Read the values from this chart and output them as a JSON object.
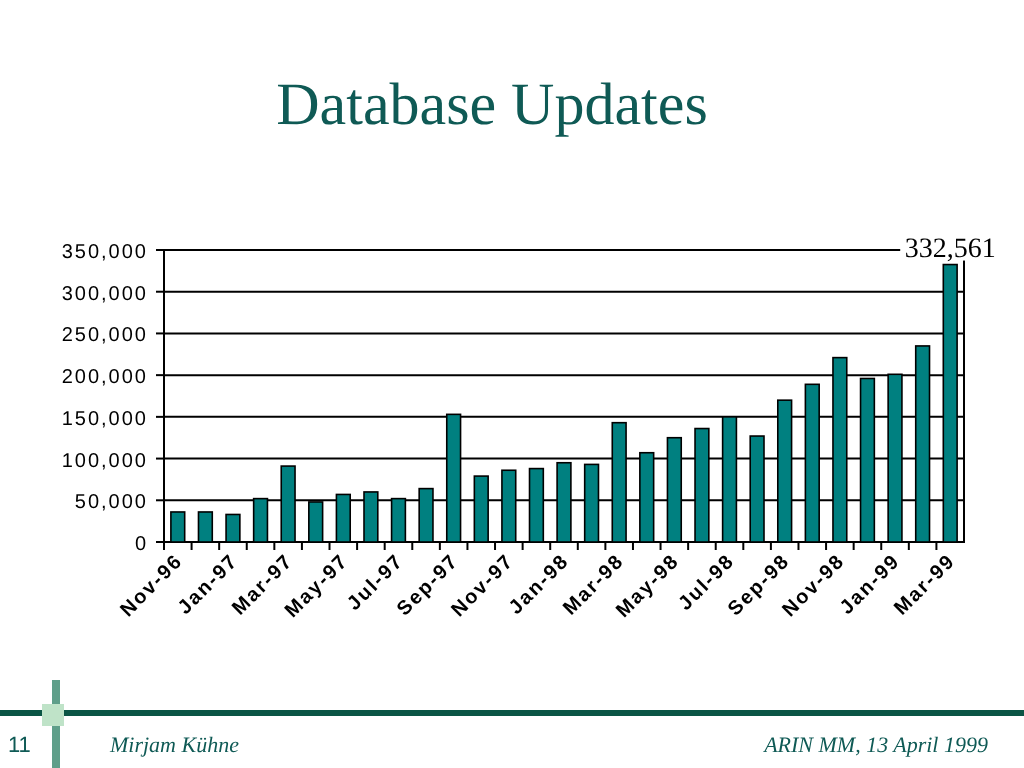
{
  "chart_data": {
    "type": "bar",
    "title": "Database Updates",
    "categories": [
      "Nov-96",
      null,
      "Jan-97",
      null,
      "Mar-97",
      null,
      "May-97",
      null,
      "Jul-97",
      null,
      "Sep-97",
      null,
      "Nov-97",
      null,
      "Jan-98",
      null,
      "Mar-98",
      null,
      "May-98",
      null,
      "Jul-98",
      null,
      "Sep-98",
      null,
      "Nov-98",
      null,
      "Jan-99",
      null,
      "Mar-99"
    ],
    "values": [
      36000,
      36000,
      33000,
      52000,
      91000,
      48000,
      57000,
      60000,
      52000,
      64000,
      153000,
      79000,
      86000,
      88000,
      95000,
      93000,
      143000,
      107000,
      125000,
      136000,
      150000,
      127000,
      170000,
      189000,
      221000,
      196000,
      201000,
      235000,
      332561
    ],
    "value_labels": [
      null,
      null,
      null,
      null,
      null,
      null,
      null,
      null,
      null,
      null,
      null,
      null,
      null,
      null,
      null,
      null,
      null,
      null,
      null,
      null,
      null,
      null,
      null,
      null,
      null,
      null,
      null,
      null,
      "332,561"
    ],
    "color": "#008080",
    "ylim": [
      0,
      350000
    ],
    "yticks": [
      0,
      {
        "value": 50000,
        "label": "50,000"
      },
      {
        "value": 100000,
        "label": "100,000"
      },
      {
        "value": 150000,
        "label": "150,000"
      },
      {
        "value": 200000,
        "label": "200,000"
      },
      {
        "value": 250000,
        "label": "250,000"
      },
      {
        "value": 300000,
        "label": "300,000"
      },
      {
        "value": 350000,
        "label": "350,000"
      }
    ],
    "grid": "y",
    "annotations": [
      "11",
      "Mirjam Kühne",
      "ARIN MM, 13 April 1999"
    ]
  }
}
